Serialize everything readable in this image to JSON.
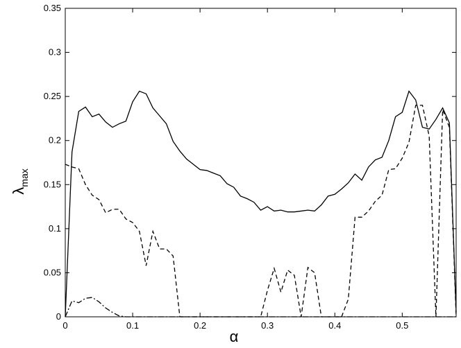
{
  "chart_data": {
    "type": "line",
    "x_label": "α",
    "y_label": "λ",
    "y_label_subscript": "max",
    "x": [
      0,
      0.01,
      0.02,
      0.03,
      0.04,
      0.05,
      0.06,
      0.07,
      0.08,
      0.09,
      0.1,
      0.11,
      0.12,
      0.13,
      0.14,
      0.15,
      0.16,
      0.17,
      0.18,
      0.19,
      0.2,
      0.21,
      0.22,
      0.23,
      0.24,
      0.25,
      0.26,
      0.27,
      0.28,
      0.29,
      0.3,
      0.31,
      0.32,
      0.33,
      0.34,
      0.35,
      0.36,
      0.37,
      0.38,
      0.39,
      0.4,
      0.41,
      0.42,
      0.43,
      0.44,
      0.45,
      0.46,
      0.47,
      0.48,
      0.49,
      0.5,
      0.51,
      0.52,
      0.53,
      0.54,
      0.55,
      0.56,
      0.57,
      0.58
    ],
    "series": [
      {
        "color": "#000000",
        "dash": "solid",
        "values": [
          0,
          0.187,
          0.233,
          0.238,
          0.227,
          0.23,
          0.221,
          0.215,
          0.219,
          0.222,
          0.244,
          0.256,
          0.253,
          0.237,
          0.228,
          0.219,
          0.199,
          0.188,
          0.179,
          0.173,
          0.167,
          0.166,
          0.163,
          0.16,
          0.151,
          0.147,
          0.137,
          0.134,
          0.13,
          0.121,
          0.125,
          0.12,
          0.121,
          0.119,
          0.119,
          0.12,
          0.121,
          0.12,
          0.127,
          0.137,
          0.139,
          0.145,
          0.152,
          0.162,
          0.155,
          0.17,
          0.178,
          0.181,
          0.2,
          0.227,
          0.232,
          0.256,
          0.246,
          0.215,
          0.213,
          0.224,
          0.237,
          0.22,
          0.005
        ]
      },
      {
        "color": "#000000",
        "dash": "dashed",
        "values": [
          0.173,
          0.17,
          0.168,
          0.15,
          0.138,
          0.133,
          0.118,
          0.122,
          0.122,
          0.111,
          0.107,
          0.097,
          0.058,
          0.097,
          0.077,
          0.077,
          0.069,
          0,
          0,
          0,
          0,
          0,
          0,
          0,
          0,
          0,
          0,
          0,
          0,
          0,
          0.03,
          0.055,
          0.028,
          0.053,
          0.047,
          0,
          0.056,
          0.05,
          0,
          0,
          0,
          0,
          0.02,
          0.113,
          0.113,
          0.12,
          0.131,
          0.138,
          0.167,
          0.168,
          0.18,
          0.198,
          0.24,
          0.24,
          0.205,
          0,
          0.235,
          0.215,
          0
        ]
      },
      {
        "color": "#000000",
        "dash": "dashdot",
        "values": [
          0,
          0.018,
          0.016,
          0.021,
          0.022,
          0.017,
          0.01,
          0.005,
          0.001,
          0,
          0,
          0,
          0,
          0,
          0,
          0,
          0,
          0,
          0,
          0,
          0,
          0,
          0,
          0,
          0,
          0,
          0,
          0,
          0,
          0,
          0,
          0,
          0,
          0,
          0,
          0,
          0,
          0,
          0,
          0,
          0,
          0,
          0,
          0,
          0,
          0,
          0,
          0,
          0,
          0,
          0,
          0,
          0,
          0,
          0,
          0,
          0,
          0,
          0
        ]
      }
    ],
    "xlim": [
      0,
      0.58
    ],
    "ylim": [
      0,
      0.35
    ],
    "xticks": [
      0,
      0.1,
      0.2,
      0.3,
      0.4,
      0.5
    ],
    "yticks": [
      0,
      0.05,
      0.1,
      0.15,
      0.2,
      0.25,
      0.3,
      0.35
    ],
    "grid": false
  }
}
